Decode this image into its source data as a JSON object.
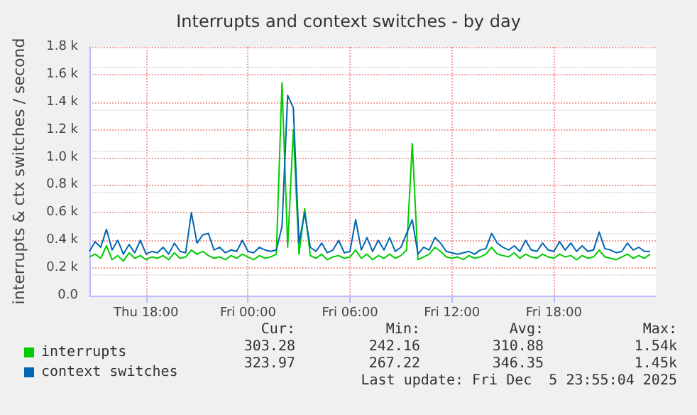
{
  "chart_data": {
    "type": "line",
    "title": "Interrupts and context switches - by day",
    "ylabel": "interrupts & ctx switches / second",
    "x": [
      "2025-12-04T14:40",
      "2025-12-04T15:00",
      "2025-12-04T15:20",
      "2025-12-04T15:40",
      "2025-12-04T16:00",
      "2025-12-04T16:20",
      "2025-12-04T16:40",
      "2025-12-04T17:00",
      "2025-12-04T17:20",
      "2025-12-04T17:40",
      "2025-12-04T18:00",
      "2025-12-04T18:20",
      "2025-12-04T18:40",
      "2025-12-04T19:00",
      "2025-12-04T19:20",
      "2025-12-04T19:40",
      "2025-12-04T20:00",
      "2025-12-04T20:20",
      "2025-12-04T20:40",
      "2025-12-04T21:00",
      "2025-12-04T21:20",
      "2025-12-04T21:40",
      "2025-12-04T22:00",
      "2025-12-04T22:20",
      "2025-12-04T22:40",
      "2025-12-04T23:00",
      "2025-12-04T23:20",
      "2025-12-04T23:40",
      "2025-12-05T00:00",
      "2025-12-05T00:20",
      "2025-12-05T00:40",
      "2025-12-05T01:00",
      "2025-12-05T01:20",
      "2025-12-05T01:40",
      "2025-12-05T02:00",
      "2025-12-05T02:20",
      "2025-12-05T02:40",
      "2025-12-05T03:00",
      "2025-12-05T03:20",
      "2025-12-05T03:40",
      "2025-12-05T04:00",
      "2025-12-05T04:20",
      "2025-12-05T04:40",
      "2025-12-05T05:00",
      "2025-12-05T05:20",
      "2025-12-05T05:40",
      "2025-12-05T06:00",
      "2025-12-05T06:20",
      "2025-12-05T06:40",
      "2025-12-05T07:00",
      "2025-12-05T07:20",
      "2025-12-05T07:40",
      "2025-12-05T08:00",
      "2025-12-05T08:20",
      "2025-12-05T08:40",
      "2025-12-05T09:00",
      "2025-12-05T09:20",
      "2025-12-05T09:40",
      "2025-12-05T10:00",
      "2025-12-05T10:20",
      "2025-12-05T10:40",
      "2025-12-05T11:00",
      "2025-12-05T11:20",
      "2025-12-05T11:40",
      "2025-12-05T12:00",
      "2025-12-05T12:20",
      "2025-12-05T12:40",
      "2025-12-05T13:00",
      "2025-12-05T13:20",
      "2025-12-05T13:40",
      "2025-12-05T14:00",
      "2025-12-05T14:20",
      "2025-12-05T14:40",
      "2025-12-05T15:00",
      "2025-12-05T15:20",
      "2025-12-05T15:40",
      "2025-12-05T16:00",
      "2025-12-05T16:20",
      "2025-12-05T16:40",
      "2025-12-05T17:00",
      "2025-12-05T17:20",
      "2025-12-05T17:40",
      "2025-12-05T18:00",
      "2025-12-05T18:20",
      "2025-12-05T18:40",
      "2025-12-05T19:00",
      "2025-12-05T19:20",
      "2025-12-05T19:40",
      "2025-12-05T20:00",
      "2025-12-05T20:20",
      "2025-12-05T20:40",
      "2025-12-05T21:00",
      "2025-12-05T21:20",
      "2025-12-05T21:40",
      "2025-12-05T22:00",
      "2025-12-05T22:20",
      "2025-12-05T22:40",
      "2025-12-05T23:00",
      "2025-12-05T23:20",
      "2025-12-05T23:40"
    ],
    "series": [
      {
        "name": "interrupts",
        "color": "#00cc00",
        "values": [
          280,
          300,
          270,
          360,
          260,
          290,
          250,
          310,
          270,
          290,
          260,
          280,
          270,
          290,
          260,
          310,
          270,
          280,
          330,
          300,
          320,
          290,
          270,
          280,
          260,
          290,
          270,
          300,
          280,
          260,
          290,
          270,
          280,
          300,
          1540,
          350,
          1200,
          300,
          630,
          290,
          270,
          300,
          260,
          280,
          290,
          270,
          280,
          330,
          270,
          300,
          260,
          290,
          270,
          300,
          270,
          290,
          330,
          1100,
          260,
          280,
          300,
          350,
          320,
          280,
          270,
          280,
          260,
          290,
          270,
          280,
          300,
          350,
          300,
          290,
          280,
          310,
          270,
          300,
          280,
          270,
          300,
          280,
          270,
          300,
          280,
          290,
          260,
          290,
          270,
          280,
          330,
          280,
          270,
          260,
          280,
          300,
          270,
          290,
          270,
          300
        ]
      },
      {
        "name": "context switches",
        "color": "#0066b3",
        "values": [
          320,
          390,
          350,
          480,
          330,
          400,
          300,
          370,
          310,
          400,
          300,
          320,
          310,
          350,
          300,
          380,
          320,
          310,
          600,
          380,
          440,
          450,
          330,
          350,
          310,
          330,
          320,
          400,
          320,
          310,
          350,
          330,
          320,
          330,
          500,
          1450,
          1360,
          380,
          600,
          350,
          320,
          380,
          310,
          330,
          400,
          310,
          320,
          550,
          330,
          420,
          320,
          400,
          330,
          420,
          320,
          350,
          450,
          550,
          300,
          350,
          330,
          420,
          380,
          320,
          310,
          300,
          310,
          320,
          300,
          330,
          340,
          450,
          380,
          350,
          330,
          360,
          320,
          400,
          330,
          320,
          380,
          330,
          320,
          390,
          330,
          380,
          320,
          360,
          320,
          330,
          460,
          340,
          330,
          310,
          320,
          380,
          330,
          350,
          320,
          320
        ]
      }
    ],
    "xlim": [
      "2025-12-04T14:40",
      "2025-12-06T00:00"
    ],
    "xticks": [
      {
        "value": "2025-12-04T18:00",
        "label": "Thu 18:00"
      },
      {
        "value": "2025-12-05T00:00",
        "label": "Fri 00:00"
      },
      {
        "value": "2025-12-05T06:00",
        "label": "Fri 06:00"
      },
      {
        "value": "2025-12-05T12:00",
        "label": "Fri 12:00"
      },
      {
        "value": "2025-12-05T18:00",
        "label": "Fri 18:00"
      }
    ],
    "ylim": [
      0,
      1800
    ],
    "yticks": [
      {
        "value": 0,
        "label": "0.0"
      },
      {
        "value": 200,
        "label": "0.2 k"
      },
      {
        "value": 400,
        "label": "0.4 k"
      },
      {
        "value": 600,
        "label": "0.6 k"
      },
      {
        "value": 800,
        "label": "0.8 k"
      },
      {
        "value": 1000,
        "label": "1.0 k"
      },
      {
        "value": 1200,
        "label": "1.2 k"
      },
      {
        "value": 1400,
        "label": "1.4 k"
      },
      {
        "value": 1600,
        "label": "1.6 k"
      },
      {
        "value": 1800,
        "label": "1.8 k"
      }
    ],
    "grid": true,
    "legend": "bottom left",
    "marker": "none",
    "line_style": "solid",
    "annotations": [
      "Cur:",
      "Min:",
      "Avg:",
      "Max:",
      "303.28",
      "242.16",
      "310.88",
      "1.54k",
      "323.97",
      "267.22",
      "346.35",
      "1.45k",
      "Last update: Fri Dec  5 23:55:04 2025"
    ]
  }
}
